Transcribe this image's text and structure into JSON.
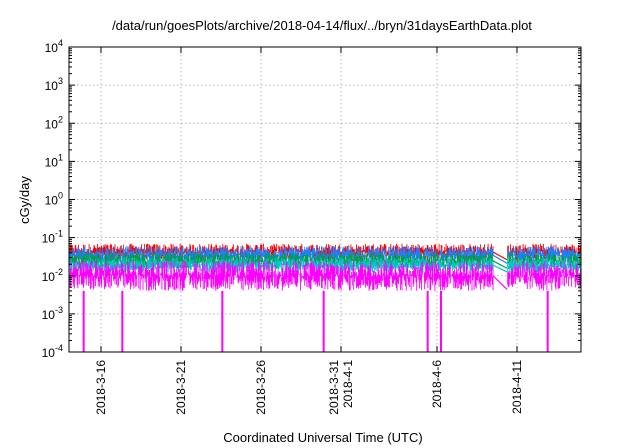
{
  "chart_data": {
    "type": "line",
    "title": "/data/run/goesPlots/archive/2018-04-14/flux/../bryn/31daysEarthData.plot",
    "xlabel": "Coordinated Universal Time (UTC)",
    "ylabel": "cGy/day",
    "y_scale": "log",
    "ylim": [
      0.0001,
      10000
    ],
    "y_ticks": [
      {
        "value": 0.0001,
        "base": "10",
        "exp": "-4"
      },
      {
        "value": 0.001,
        "base": "10",
        "exp": "-3"
      },
      {
        "value": 0.01,
        "base": "10",
        "exp": "-2"
      },
      {
        "value": 0.1,
        "base": "10",
        "exp": "-1"
      },
      {
        "value": 1,
        "base": "10",
        "exp": "0"
      },
      {
        "value": 10,
        "base": "10",
        "exp": "1"
      },
      {
        "value": 100,
        "base": "10",
        "exp": "2"
      },
      {
        "value": 1000,
        "base": "10",
        "exp": "3"
      },
      {
        "value": 10000,
        "base": "10",
        "exp": "4"
      }
    ],
    "xlim": [
      "2018-03-14",
      "2018-04-15"
    ],
    "x_ticks": [
      {
        "value": "2018-03-16",
        "lines": [
          "2018-3-16"
        ]
      },
      {
        "value": "2018-03-21",
        "lines": [
          "2018-3-21"
        ]
      },
      {
        "value": "2018-03-26",
        "lines": [
          "2018-3-26"
        ]
      },
      {
        "value": "2018-03-31",
        "lines": [
          "2018-3-31",
          "2018-4-1"
        ]
      },
      {
        "value": "2018-04-06",
        "lines": [
          "2018-4-6"
        ]
      },
      {
        "value": "2018-04-11",
        "lines": [
          "2018-4-11"
        ]
      }
    ],
    "grid": true,
    "data_gap": {
      "start": "2018-04-09T12:00",
      "end": "2018-04-10T09:00"
    },
    "series": [
      {
        "color": "#ff0000",
        "level_range": [
          0.025,
          0.07
        ]
      },
      {
        "color": "#1f7fff",
        "level_range": [
          0.02,
          0.06
        ]
      },
      {
        "color": "#00a040",
        "level_range": [
          0.015,
          0.04
        ]
      },
      {
        "color": "#00c8c8",
        "level_range": [
          0.012,
          0.03
        ]
      },
      {
        "color": "#ff00ff",
        "level_range": [
          0.004,
          0.025
        ]
      }
    ],
    "dropouts": [
      {
        "series": "#ff00ff",
        "x": "2018-03-14T22:00",
        "y": 0.0001
      },
      {
        "series": "#ff00ff",
        "x": "2018-03-17T08:00",
        "y": 0.0001
      },
      {
        "series": "#ff00ff",
        "x": "2018-03-23T14:00",
        "y": 0.0001
      },
      {
        "series": "#ff00ff",
        "x": "2018-03-29T22:00",
        "y": 0.0001
      },
      {
        "series": "#ff00ff",
        "x": "2018-04-05T10:00",
        "y": 0.0001
      },
      {
        "series": "#ff00ff",
        "x": "2018-04-06T06:00",
        "y": 0.0001
      },
      {
        "series": "#ff00ff",
        "x": "2018-04-12T22:00",
        "y": 0.0001
      }
    ]
  }
}
